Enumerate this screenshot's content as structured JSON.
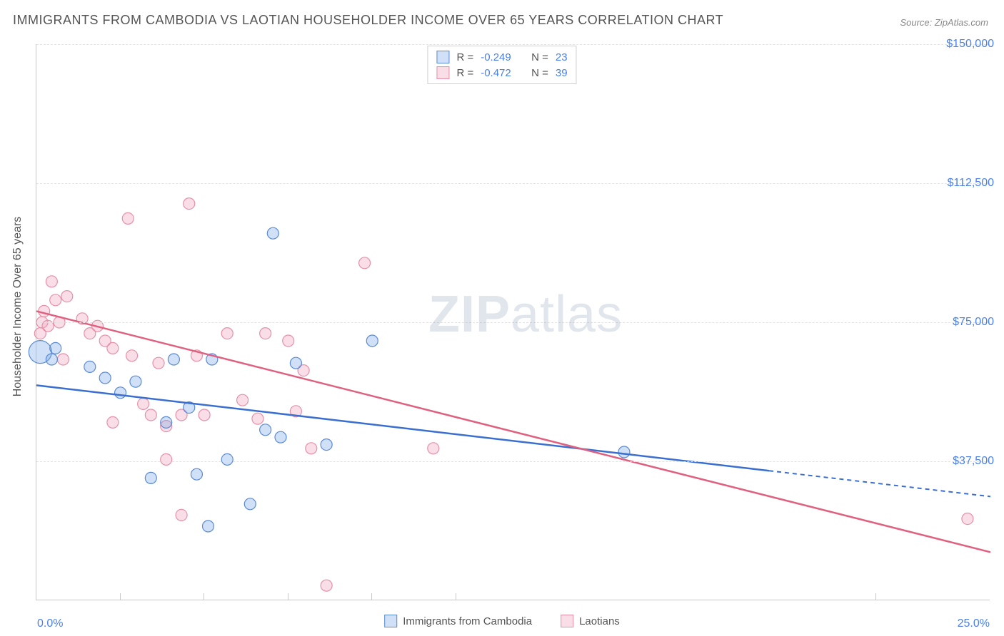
{
  "title": "IMMIGRANTS FROM CAMBODIA VS LAOTIAN HOUSEHOLDER INCOME OVER 65 YEARS CORRELATION CHART",
  "source_label": "Source: ",
  "source_name": "ZipAtlas.com",
  "watermark_zip": "ZIP",
  "watermark_atlas": "atlas",
  "y_axis_label": "Householder Income Over 65 years",
  "chart": {
    "type": "scatter",
    "background_color": "#ffffff",
    "grid_color": "#e2e2e2",
    "axis_color": "#c8c8c8",
    "tick_label_color": "#4a80e8",
    "xlim": [
      0,
      25
    ],
    "ylim": [
      0,
      150000
    ],
    "x_tick_positions": [
      0,
      2.2,
      4.4,
      6.6,
      8.8,
      11.0,
      22.0
    ],
    "x_tick_labels": {
      "0": "0.0%",
      "25": "25.0%"
    },
    "y_tick_positions": [
      37500,
      75000,
      112500,
      150000
    ],
    "y_tick_labels": {
      "37500": "$37,500",
      "75000": "$75,000",
      "112500": "$112,500",
      "150000": "$150,000"
    },
    "series": [
      {
        "name": "Immigrants from Cambodia",
        "key": "cambodia",
        "color_fill": "rgba(120,165,230,0.35)",
        "color_stroke": "#5a8ad6",
        "line_color": "#3a6fd0",
        "marker_radius": 8,
        "R": "-0.249",
        "N": "23",
        "trend": {
          "x1": 0,
          "y1": 58000,
          "x2": 25,
          "y2": 28000,
          "solid_until_x": 19.2
        },
        "points": [
          {
            "x": 0.1,
            "y": 67000,
            "r": 16
          },
          {
            "x": 0.4,
            "y": 65000
          },
          {
            "x": 0.5,
            "y": 68000
          },
          {
            "x": 2.2,
            "y": 56000
          },
          {
            "x": 1.4,
            "y": 63000
          },
          {
            "x": 1.8,
            "y": 60000
          },
          {
            "x": 2.6,
            "y": 59000
          },
          {
            "x": 3.0,
            "y": 33000
          },
          {
            "x": 3.6,
            "y": 65000
          },
          {
            "x": 3.4,
            "y": 48000
          },
          {
            "x": 4.0,
            "y": 52000
          },
          {
            "x": 4.2,
            "y": 34000
          },
          {
            "x": 4.6,
            "y": 65000
          },
          {
            "x": 4.5,
            "y": 20000
          },
          {
            "x": 5.0,
            "y": 38000
          },
          {
            "x": 5.6,
            "y": 26000
          },
          {
            "x": 6.0,
            "y": 46000
          },
          {
            "x": 6.2,
            "y": 99000
          },
          {
            "x": 6.8,
            "y": 64000
          },
          {
            "x": 6.4,
            "y": 44000
          },
          {
            "x": 7.6,
            "y": 42000
          },
          {
            "x": 8.8,
            "y": 70000
          },
          {
            "x": 15.4,
            "y": 40000
          }
        ]
      },
      {
        "name": "Laotians",
        "key": "laotians",
        "color_fill": "rgba(240,160,185,0.35)",
        "color_stroke": "#e690a8",
        "line_color": "#e0607f",
        "marker_radius": 8,
        "R": "-0.472",
        "N": "39",
        "trend": {
          "x1": 0,
          "y1": 78000,
          "x2": 25,
          "y2": 13000,
          "solid_until_x": 25
        },
        "points": [
          {
            "x": 0.1,
            "y": 72000
          },
          {
            "x": 0.15,
            "y": 75000
          },
          {
            "x": 0.2,
            "y": 78000
          },
          {
            "x": 0.3,
            "y": 74000
          },
          {
            "x": 0.4,
            "y": 86000
          },
          {
            "x": 0.5,
            "y": 81000
          },
          {
            "x": 0.6,
            "y": 75000
          },
          {
            "x": 0.7,
            "y": 65000
          },
          {
            "x": 0.8,
            "y": 82000
          },
          {
            "x": 1.2,
            "y": 76000
          },
          {
            "x": 1.4,
            "y": 72000
          },
          {
            "x": 1.6,
            "y": 74000
          },
          {
            "x": 1.8,
            "y": 70000
          },
          {
            "x": 2.0,
            "y": 68000
          },
          {
            "x": 2.0,
            "y": 48000
          },
          {
            "x": 2.4,
            "y": 103000
          },
          {
            "x": 2.5,
            "y": 66000
          },
          {
            "x": 2.8,
            "y": 53000
          },
          {
            "x": 3.0,
            "y": 50000
          },
          {
            "x": 3.2,
            "y": 64000
          },
          {
            "x": 3.4,
            "y": 47000
          },
          {
            "x": 3.4,
            "y": 38000
          },
          {
            "x": 3.8,
            "y": 50000
          },
          {
            "x": 3.8,
            "y": 23000
          },
          {
            "x": 4.0,
            "y": 107000
          },
          {
            "x": 4.2,
            "y": 66000
          },
          {
            "x": 4.4,
            "y": 50000
          },
          {
            "x": 5.0,
            "y": 72000
          },
          {
            "x": 5.4,
            "y": 54000
          },
          {
            "x": 5.8,
            "y": 49000
          },
          {
            "x": 6.0,
            "y": 72000
          },
          {
            "x": 6.6,
            "y": 70000
          },
          {
            "x": 6.8,
            "y": 51000
          },
          {
            "x": 7.0,
            "y": 62000
          },
          {
            "x": 7.2,
            "y": 41000
          },
          {
            "x": 7.6,
            "y": 4000
          },
          {
            "x": 8.6,
            "y": 91000
          },
          {
            "x": 10.4,
            "y": 41000
          },
          {
            "x": 24.4,
            "y": 22000
          }
        ]
      }
    ]
  },
  "legend_labels": {
    "R": "R =",
    "N": "N ="
  }
}
